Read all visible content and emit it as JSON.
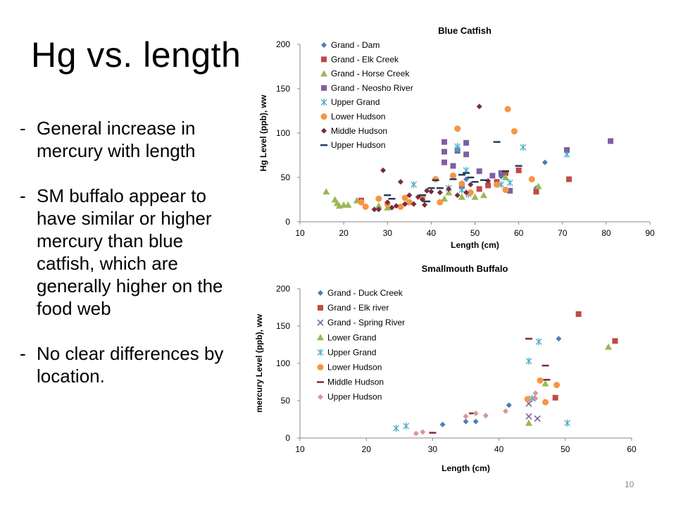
{
  "slide": {
    "title": "Hg vs. length",
    "bullets": [
      "General increase in mercury with length",
      "SM buffalo appear to have similar or higher mercury than blue catfish, which are generally higher on the food web",
      "No clear differences by location."
    ],
    "page_number": "10"
  },
  "chart_data": [
    {
      "type": "scatter",
      "title": "Blue Catfish",
      "xlabel": "Length (cm)",
      "ylabel": "Hg Level (ppb), ww",
      "xlim": [
        10,
        90
      ],
      "ylim": [
        0,
        200
      ],
      "xticks": [
        10,
        20,
        30,
        40,
        50,
        60,
        70,
        80,
        90
      ],
      "yticks": [
        0,
        50,
        100,
        150,
        200
      ],
      "grid": false,
      "legend": "top-left",
      "series": [
        {
          "name": "Grand - Dam",
          "marker": "diamond",
          "color": "#4a7ebb",
          "points": [
            [
              66,
              67
            ],
            [
              64,
              38
            ],
            [
              56,
              51
            ],
            [
              48,
              48
            ]
          ]
        },
        {
          "name": "Grand - Elk Creek",
          "marker": "square",
          "color": "#be4b48",
          "points": [
            [
              71.5,
              48
            ],
            [
              64,
              34
            ],
            [
              60,
              58
            ],
            [
              51,
              37
            ],
            [
              53,
              41
            ],
            [
              55,
              45
            ],
            [
              24,
              24
            ],
            [
              57,
              55
            ]
          ]
        },
        {
          "name": "Grand - Horse Creek",
          "marker": "triangle",
          "color": "#98b954",
          "points": [
            [
              16,
              34
            ],
            [
              18,
              25
            ],
            [
              18.5,
              21
            ],
            [
              19,
              18
            ],
            [
              20,
              19
            ],
            [
              21,
              19
            ],
            [
              23,
              24
            ],
            [
              44,
              33
            ],
            [
              47,
              28
            ],
            [
              50,
              28
            ],
            [
              52,
              30
            ],
            [
              57,
              50
            ],
            [
              64.5,
              40
            ],
            [
              43,
              26
            ],
            [
              28,
              18
            ],
            [
              30,
              16
            ]
          ]
        },
        {
          "name": "Grand - Neosho River",
          "marker": "square",
          "color": "#7d60a0",
          "points": [
            [
              43,
              90
            ],
            [
              43,
              79
            ],
            [
              43,
              67
            ],
            [
              45,
              63
            ],
            [
              46,
              80
            ],
            [
              48,
              89
            ],
            [
              48,
              76
            ],
            [
              51,
              57
            ],
            [
              54,
              52
            ],
            [
              56,
              55
            ],
            [
              58,
              35
            ],
            [
              71,
              81
            ],
            [
              81,
              91
            ],
            [
              47,
              40
            ]
          ]
        },
        {
          "name": "Upper Grand",
          "marker": "asterisk",
          "color": "#46aac5",
          "points": [
            [
              36,
              42
            ],
            [
              46,
              85
            ],
            [
              46,
              82
            ],
            [
              48,
              58
            ],
            [
              61,
              84
            ],
            [
              71,
              76
            ],
            [
              58,
              44
            ],
            [
              56,
              42
            ],
            [
              47,
              36
            ],
            [
              44,
              38
            ],
            [
              48.5,
              31
            ]
          ]
        },
        {
          "name": "Lower Hudson",
          "marker": "circle",
          "color": "#f69545",
          "points": [
            [
              24,
              22
            ],
            [
              25,
              17
            ],
            [
              28,
              26
            ],
            [
              30,
              20
            ],
            [
              33,
              17
            ],
            [
              35,
              22
            ],
            [
              38,
              27
            ],
            [
              41,
              48
            ],
            [
              42,
              22
            ],
            [
              46,
              105
            ],
            [
              47,
              43
            ],
            [
              49,
              33
            ],
            [
              55,
              42
            ],
            [
              57,
              36
            ],
            [
              57.5,
              127
            ],
            [
              59,
              102
            ],
            [
              63,
              48
            ],
            [
              45,
              52
            ],
            [
              34,
              27
            ]
          ]
        },
        {
          "name": "Middle Hudson",
          "marker": "diamond",
          "color": "#7b2c3e",
          "points": [
            [
              29,
              58
            ],
            [
              30,
              22
            ],
            [
              31,
              16
            ],
            [
              33,
              45
            ],
            [
              35,
              30
            ],
            [
              34,
              20
            ],
            [
              37,
              28
            ],
            [
              38,
              25
            ],
            [
              39,
              35
            ],
            [
              40,
              34
            ],
            [
              42,
              33
            ],
            [
              44,
              37
            ],
            [
              46,
              30
            ],
            [
              48,
              33
            ],
            [
              49,
              42
            ],
            [
              51,
              130
            ],
            [
              53,
              46
            ],
            [
              27,
              14
            ],
            [
              28,
              14
            ],
            [
              32,
              18
            ],
            [
              36,
              20
            ],
            [
              38.5,
              19
            ]
          ]
        },
        {
          "name": "Upper Hudson",
          "marker": "dash",
          "color": "#1f3d5c",
          "points": [
            [
              30,
              30
            ],
            [
              31,
              26
            ],
            [
              38,
              30
            ],
            [
              40,
              38
            ],
            [
              41,
              47
            ],
            [
              42,
              38
            ],
            [
              45,
              48
            ],
            [
              47,
              53
            ],
            [
              48,
              55
            ],
            [
              49,
              50
            ],
            [
              50,
              45
            ],
            [
              52,
              47
            ],
            [
              55,
              90
            ],
            [
              57,
              57
            ],
            [
              60,
              63
            ],
            [
              39,
              23
            ]
          ]
        }
      ]
    },
    {
      "type": "scatter",
      "title": "Smallmouth Buffalo",
      "xlabel": "Length (cm)",
      "ylabel": "mercury Level (ppb), ww",
      "xlim": [
        10,
        60
      ],
      "ylim": [
        0,
        200
      ],
      "xticks": [
        10,
        20,
        30,
        40,
        50,
        60
      ],
      "yticks": [
        0,
        50,
        100,
        150,
        200
      ],
      "grid": false,
      "legend": "top-left",
      "series": [
        {
          "name": "Grand - Duck Creek",
          "marker": "diamond",
          "color": "#4a7ebb",
          "points": [
            [
              31.5,
              18
            ],
            [
              35,
              22
            ],
            [
              36.5,
              22
            ],
            [
              41.5,
              44
            ],
            [
              49,
              133
            ]
          ]
        },
        {
          "name": "Grand - Elk river",
          "marker": "square",
          "color": "#be4b48",
          "points": [
            [
              52,
              166
            ],
            [
              57.5,
              130
            ],
            [
              48.5,
              54
            ]
          ]
        },
        {
          "name": "Grand - Spring River",
          "marker": "x",
          "color": "#7d60a0",
          "points": [
            [
              44.5,
              46
            ],
            [
              44.5,
              29
            ],
            [
              45.8,
              26
            ]
          ]
        },
        {
          "name": "Lower Grand",
          "marker": "triangle",
          "color": "#98b954",
          "points": [
            [
              44.5,
              20
            ],
            [
              56.5,
              122
            ],
            [
              47,
              73
            ]
          ]
        },
        {
          "name": "Upper Grand",
          "marker": "asterisk",
          "color": "#46aac5",
          "points": [
            [
              24.5,
              13
            ],
            [
              26,
              16
            ],
            [
              44.5,
              103
            ],
            [
              46,
              129
            ],
            [
              50.3,
              20
            ],
            [
              45,
              53
            ]
          ]
        },
        {
          "name": "Lower Hudson",
          "marker": "circle",
          "color": "#f69545",
          "points": [
            [
              46.2,
              77
            ],
            [
              47,
              48
            ],
            [
              48.7,
              71
            ],
            [
              44.3,
              52
            ]
          ]
        },
        {
          "name": "Middle Hudson",
          "marker": "dash",
          "color": "#7b2c3e",
          "points": [
            [
              30,
              7
            ],
            [
              36,
              33
            ],
            [
              44.5,
              133
            ],
            [
              47,
              97
            ],
            [
              47.2,
              78
            ]
          ]
        },
        {
          "name": "Upper Hudson",
          "marker": "diamond",
          "color": "#d99694",
          "points": [
            [
              27.5,
              6
            ],
            [
              28.5,
              8
            ],
            [
              35,
              29
            ],
            [
              36.5,
              33
            ],
            [
              38,
              30
            ],
            [
              41,
              36
            ],
            [
              45.5,
              60
            ],
            [
              45.5,
              53
            ]
          ]
        }
      ]
    }
  ]
}
